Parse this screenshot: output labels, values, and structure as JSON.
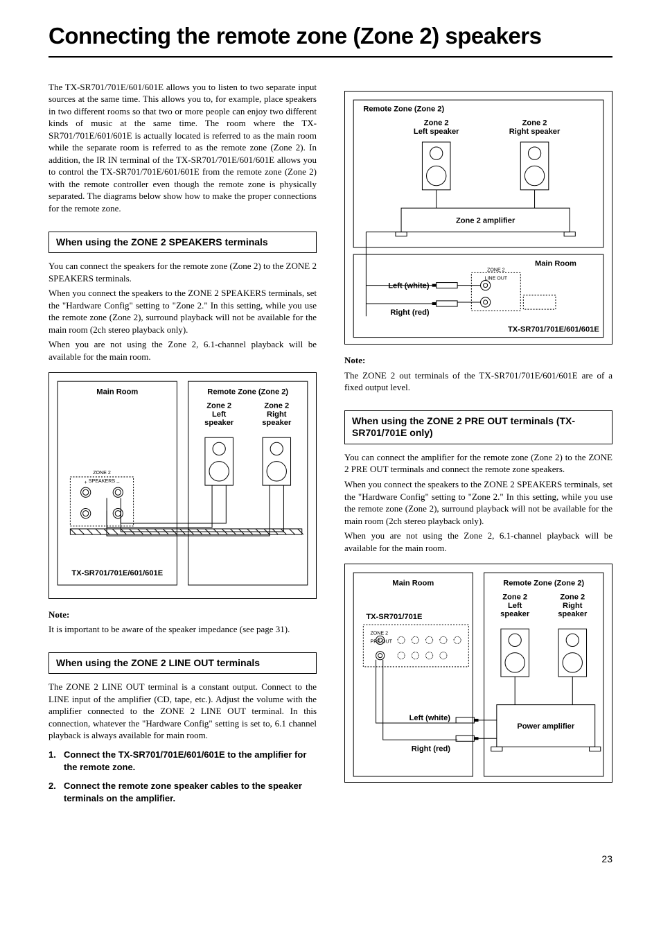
{
  "title": "Connecting the remote zone (Zone 2) speakers",
  "page_number": "23",
  "intro": "The TX-SR701/701E/601/601E allows you to listen to two separate input sources at the same time. This allows you to, for example, place speakers in two different rooms so that two or more people can enjoy two different kinds of music at the same time. The room where the TX-SR701/701E/601/601E is actually located is referred to as the main room while the separate room is referred to as the remote zone (Zone 2). In addition, the IR IN terminal of the TX-SR701/701E/601/601E allows you to control the TX-SR701/701E/601/601E from the remote zone (Zone 2) with the remote controller even though the remote zone is physically separated. The diagrams below show how to make the proper connections for the remote zone.",
  "sec1": {
    "head": "When using the ZONE 2 SPEAKERS terminals",
    "p1": "You can connect the speakers for the remote zone (Zone 2) to the ZONE 2 SPEAKERS terminals.",
    "p2": "When you connect the speakers to the ZONE 2 SPEAKERS terminals, set the \"Hardware Config\" setting to \"Zone 2.\" In this setting, while you use the remote zone (Zone 2), surround playback will not be available for the main room (2ch stereo playback only).",
    "p3": "When you are not using the Zone 2, 6.1-channel playback will be available for the main room.",
    "note_label": "Note:",
    "note": "It is important to be aware of the speaker impedance (see page 31)."
  },
  "sec2": {
    "head": "When using the ZONE 2 LINE OUT terminals",
    "p1": "The ZONE 2 LINE OUT terminal is a constant output. Connect to the LINE input of the amplifier (CD, tape, etc.). Adjust the volume with the amplifier connected to the ZONE 2 LINE OUT terminal. In this connection, whatever the \"Hardware Config\" setting is set to, 6.1 channel playback is always available for main room.",
    "step1": "Connect the TX-SR701/701E/601/601E to the amplifier for the remote zone.",
    "step2": "Connect the remote zone speaker cables to the speaker terminals on the amplifier.",
    "note_label": "Note:",
    "note": "The ZONE 2 out terminals of the TX-SR701/701E/601/601E are of a fixed output level."
  },
  "sec3": {
    "head": "When using the ZONE 2 PRE OUT terminals (TX-SR701/701E only)",
    "p1": "You can connect the amplifier for the remote zone (Zone 2) to the ZONE 2 PRE OUT terminals and connect the remote zone speakers.",
    "p2": "When you connect the speakers to the ZONE 2 SPEAKERS terminals, set the \"Hardware Config\" setting to \"Zone 2.\" In this setting, while you use the remote zone (Zone 2), surround playback will not be available for the main room (2ch stereo playback only).",
    "p3": "When you are not using the Zone 2, 6.1-channel playback will be available for the main room."
  },
  "diag1": {
    "main_room": "Main Room",
    "remote_zone": "Remote Zone (Zone 2)",
    "z2_left": "Zone 2\nLeft\nspeaker",
    "z2_right": "Zone 2\nRight\nspeaker",
    "model": "TX-SR701/701E/601/601E",
    "terminal": "ZONE 2\nSPEAKERS"
  },
  "diag2": {
    "remote_zone": "Remote Zone (Zone 2)",
    "main_room": "Main Room",
    "z2_left": "Zone 2\nLeft speaker",
    "z2_right": "Zone 2\nRight speaker",
    "amp": "Zone 2 amplifier",
    "left_w": "Left (white)",
    "right_r": "Right (red)",
    "model": "TX-SR701/701E/601/601E",
    "terminal": "ZONE 2\nLINE OUT"
  },
  "diag3": {
    "main_room": "Main Room",
    "remote_zone": "Remote Zone (Zone 2)",
    "z2_left": "Zone 2\nLeft\nspeaker",
    "z2_right": "Zone 2\nRight\nspeaker",
    "model": "TX-SR701/701E",
    "left_w": "Left (white)",
    "right_r": "Right (red)",
    "power_amp": "Power amplifier",
    "terminal": "ZONE 2\nPRE OUT"
  }
}
